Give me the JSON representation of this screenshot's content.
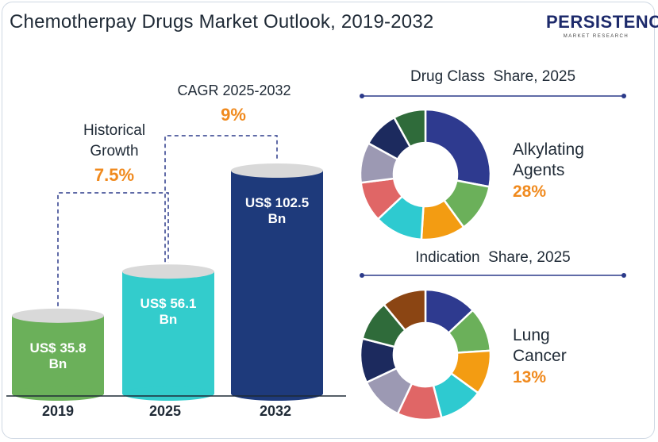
{
  "title": "Chemotherpay Drugs Market Outlook, 2019-2032",
  "logo": {
    "brand": "PERSISTENCE",
    "sub": "MARKET RESEARCH"
  },
  "annotations": {
    "historical_label_1": "Historical",
    "historical_label_2": "Growth",
    "historical_value": "7.5%",
    "cagr_label": "CAGR 2025-2032",
    "cagr_value": "9%"
  },
  "colors": {
    "bar_2019": "#6bb05a",
    "bar_2025": "#33cccc",
    "bar_2032": "#1e3a7b",
    "bar_top": "#d9d9d9",
    "dashed": "#2b3a8a",
    "accent": "#f08a1e"
  },
  "chart_data": [
    {
      "type": "bar",
      "categories": [
        "2019",
        "2025",
        "2032"
      ],
      "values": [
        35.8,
        56.1,
        102.5
      ],
      "data_labels": [
        "US$ 35.8 Bn",
        "US$ 56.1 Bn",
        "US$ 102.5 Bn"
      ],
      "ylabel": "",
      "xlabel": ""
    },
    {
      "type": "pie",
      "title": "Drug Class  Share, 2025",
      "highlight_label": "Alkylating Agents",
      "highlight_label_lines": [
        "Alkylating",
        "Agents"
      ],
      "highlight_value": "28%",
      "slices": [
        {
          "value": 28,
          "color": "#2e3a8f"
        },
        {
          "value": 12,
          "color": "#6bb05a"
        },
        {
          "value": 11,
          "color": "#f39c12"
        },
        {
          "value": 12,
          "color": "#2ecad0"
        },
        {
          "value": 10,
          "color": "#e06666"
        },
        {
          "value": 10,
          "color": "#9c99b3"
        },
        {
          "value": 9,
          "color": "#1c2a5e"
        },
        {
          "value": 8,
          "color": "#2f6b3a"
        }
      ]
    },
    {
      "type": "pie",
      "title": "Indication  Share, 2025",
      "highlight_label": "Lung Cancer",
      "highlight_label_lines": [
        "Lung",
        "Cancer"
      ],
      "highlight_value": "13%",
      "slices": [
        {
          "value": 13,
          "color": "#2e3a8f"
        },
        {
          "value": 11,
          "color": "#6bb05a"
        },
        {
          "value": 11,
          "color": "#f39c12"
        },
        {
          "value": 11,
          "color": "#2ecad0"
        },
        {
          "value": 11,
          "color": "#e06666"
        },
        {
          "value": 11,
          "color": "#9c99b3"
        },
        {
          "value": 11,
          "color": "#1c2a5e"
        },
        {
          "value": 10,
          "color": "#2f6b3a"
        },
        {
          "value": 11,
          "color": "#8b4513"
        }
      ]
    }
  ]
}
